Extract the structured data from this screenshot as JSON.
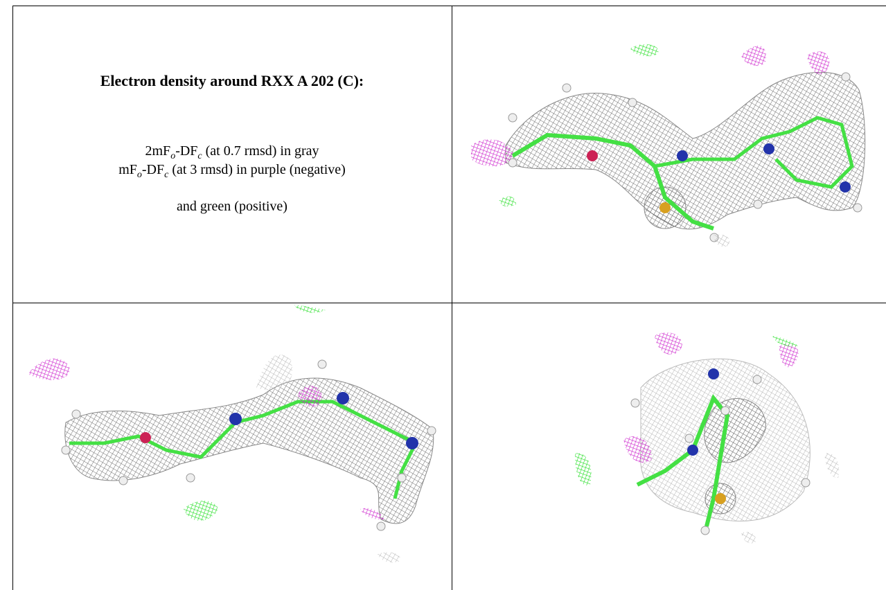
{
  "figure": {
    "title": "Electron density around RXX A 202 (C):",
    "caption_lines": [
      [
        "2mF",
        "o",
        "-DF",
        "c",
        " (at 0.7 rmsd) in gray"
      ],
      [
        "mF",
        "o",
        "-DF",
        "c",
        " (at 3 rmsd) in purple (negative)"
      ],
      [
        "and green (positive)"
      ]
    ]
  }
}
